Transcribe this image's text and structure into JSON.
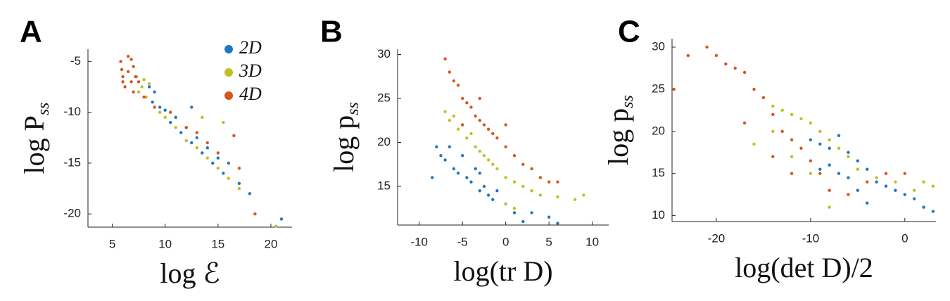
{
  "chart_data": [
    {
      "type": "scatter",
      "panel_label": "A",
      "xlabel": "log ℰ",
      "ylabel": "log P",
      "ylabel_sub": "ss",
      "xlim": [
        2.7,
        22
      ],
      "ylim": [
        -21.3,
        -3.8
      ],
      "xticks": [
        5,
        10,
        15,
        20
      ],
      "yticks": [
        -5,
        -10,
        -15,
        -20
      ],
      "legend": "upper right",
      "series": [
        {
          "name": "2D",
          "color": "#1f77bd",
          "x": [
            8.5,
            8.8,
            9,
            9.5,
            10,
            10.5,
            11,
            11.5,
            12,
            12.5,
            13,
            13.5,
            14,
            14.5,
            15,
            15.5,
            16,
            17,
            18,
            21,
            12.5
          ],
          "values": [
            -7.5,
            -9,
            -8,
            -9.5,
            -9.8,
            -11,
            -10.5,
            -12,
            -11.5,
            -13,
            -12.5,
            -14,
            -13.5,
            -15,
            -14.5,
            -16,
            -15,
            -17,
            -18,
            -20.5,
            -9.5
          ]
        },
        {
          "name": "3D",
          "color": "#bfbf26",
          "x": [
            7.3,
            7.5,
            7.8,
            8,
            8.2,
            8.5,
            9,
            9.5,
            10,
            11,
            12,
            13,
            14,
            15,
            16,
            17,
            15.5,
            13.5,
            20.5
          ],
          "values": [
            -6.5,
            -8,
            -7.5,
            -6.8,
            -8.5,
            -7.2,
            -9.5,
            -10,
            -10.5,
            -11.5,
            -12.8,
            -13.5,
            -14.5,
            -15.5,
            -16.5,
            -17.5,
            -11,
            -10.5,
            -21.2
          ]
        },
        {
          "name": "4D",
          "color": "#d9541a",
          "x": [
            5.8,
            6,
            6.2,
            6.5,
            6.5,
            6.8,
            7,
            7,
            7.2,
            6,
            5.9,
            6.8,
            7.5,
            8,
            9,
            10.5,
            12,
            14,
            15,
            16.5,
            17,
            18.5,
            13
          ],
          "values": [
            -5,
            -6.5,
            -7.5,
            -4.5,
            -6,
            -7,
            -5.5,
            -8,
            -6.5,
            -7,
            -5.8,
            -4.8,
            -7,
            -8.5,
            -9.5,
            -10,
            -11.5,
            -13,
            -14,
            -12.3,
            -15.5,
            -20,
            -12
          ]
        }
      ]
    },
    {
      "type": "scatter",
      "panel_label": "B",
      "xlabel": "log(tr D)",
      "ylabel": "log p",
      "ylabel_sub": "ss",
      "xlim": [
        -12.5,
        11.9
      ],
      "ylim": [
        10.6,
        30.6
      ],
      "xticks": [
        -10,
        -5,
        0,
        5,
        10
      ],
      "yticks": [
        15,
        20,
        25,
        30
      ],
      "series": [
        {
          "color": "#1f77bd",
          "x": [
            -8,
            -7.5,
            -7,
            -6.5,
            -6,
            -5.5,
            -5,
            -4.5,
            -4,
            -3.5,
            -3,
            -2.5,
            -2,
            -1.5,
            -1,
            0,
            1,
            2,
            3,
            5,
            6,
            -3,
            -8.5
          ],
          "values": [
            19.5,
            18.5,
            18,
            19.5,
            17,
            16.5,
            18.5,
            16,
            15.5,
            17,
            14.5,
            15,
            14,
            13.5,
            14.5,
            13,
            12,
            11,
            12,
            11.5,
            10.8,
            16.5,
            16
          ]
        },
        {
          "color": "#bfbf26",
          "x": [
            -7,
            -6.5,
            -6,
            -5.5,
            -5,
            -4.5,
            -4,
            -3.5,
            -3,
            -2.5,
            -2,
            -1.5,
            -1,
            0,
            1,
            2,
            3,
            4,
            6,
            8,
            9,
            0,
            1
          ],
          "values": [
            23.5,
            22.5,
            23,
            21.5,
            22,
            20.5,
            21,
            19.5,
            19,
            18.5,
            18,
            17.5,
            17,
            16,
            15.5,
            15,
            14.5,
            14,
            13.8,
            13.5,
            14,
            13,
            12.5
          ]
        },
        {
          "color": "#d9541a",
          "x": [
            -7,
            -6.5,
            -6,
            -5.5,
            -5,
            -4.5,
            -4,
            -3.5,
            -3,
            -2.5,
            -2,
            -1.5,
            -1,
            0,
            1,
            2,
            3,
            4,
            5,
            6,
            -3,
            0,
            -5
          ],
          "values": [
            29.5,
            28,
            27,
            26.5,
            25,
            24.5,
            24,
            23,
            22.5,
            22,
            21.5,
            21,
            20.5,
            19.5,
            18.5,
            17.5,
            17,
            16,
            15.5,
            15.5,
            25,
            22,
            22
          ]
        }
      ]
    },
    {
      "type": "scatter",
      "panel_label": "C",
      "xlabel": "log(det D)/2",
      "ylabel": "log p",
      "ylabel_sub": "ss",
      "xlim": [
        -24.7,
        3.3
      ],
      "ylim": [
        9.3,
        31
      ],
      "xticks": [
        -20,
        -10,
        0
      ],
      "yticks": [
        10,
        15,
        20,
        25,
        30
      ],
      "series": [
        {
          "color": "#1f77bd",
          "x": [
            -10,
            -9,
            -8,
            -7,
            -6,
            -5,
            -8,
            -4,
            -6,
            -3,
            -2,
            -5,
            -1,
            0,
            1,
            -4,
            2,
            3,
            -7,
            -9
          ],
          "values": [
            19,
            18.5,
            18,
            19.5,
            17.5,
            16.5,
            16,
            15.5,
            14.5,
            14,
            13.5,
            13,
            13,
            12.5,
            12,
            11.5,
            11,
            10.5,
            15,
            15.5
          ]
        },
        {
          "color": "#bfbf26",
          "x": [
            -16,
            -15,
            -14,
            -13,
            -12,
            -11,
            -10,
            -9,
            -8,
            -7,
            -6,
            -12,
            -10,
            -5,
            -3,
            -1,
            1,
            2,
            3,
            -8,
            -14
          ],
          "values": [
            18.5,
            24,
            23,
            22.5,
            22,
            21.5,
            21,
            20,
            19,
            18,
            17,
            17,
            15,
            15.5,
            14.5,
            14,
            13,
            14,
            13.5,
            11,
            20
          ]
        },
        {
          "color": "#d9541a",
          "x": [
            -24.5,
            -23,
            -21,
            -20,
            -19,
            -18,
            -17,
            -16,
            -15,
            -17,
            -14,
            -13,
            -12,
            -11,
            -10,
            -9,
            -12,
            -8,
            -6,
            -4,
            -2,
            0,
            -14
          ],
          "values": [
            25,
            29,
            30,
            29,
            28,
            27.5,
            27,
            25,
            24,
            21,
            22,
            20,
            19,
            18,
            16.5,
            15,
            15,
            13,
            12.5,
            14,
            15,
            15,
            17
          ]
        }
      ]
    }
  ]
}
